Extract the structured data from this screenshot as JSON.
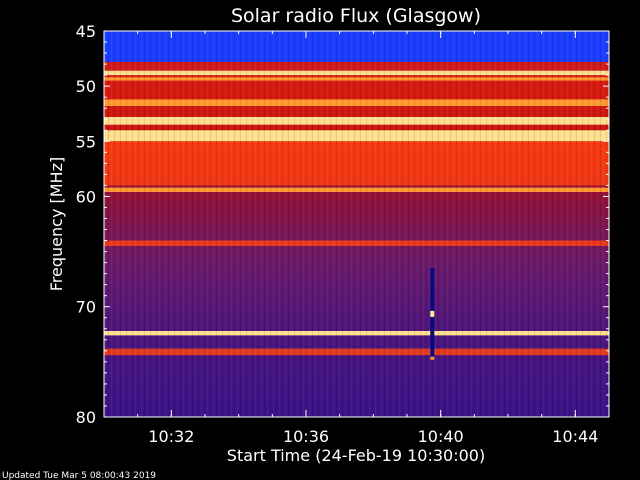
{
  "chart_data": {
    "type": "heatmap",
    "title": "Solar radio Flux (Glasgow)",
    "xlabel": "Start Time (24-Feb-19 10:30:00)",
    "ylabel": "Frequency [MHz]",
    "x_axis": {
      "unit": "time",
      "range": [
        "10:30:00",
        "10:45:00"
      ],
      "ticks": [
        "10:32",
        "10:36",
        "10:40",
        "10:44"
      ]
    },
    "y_axis": {
      "unit": "MHz",
      "range": [
        45,
        80
      ],
      "inverted": true,
      "ticks": [
        45,
        50,
        55,
        60,
        70,
        80
      ]
    },
    "colors": {
      "background": "#000000",
      "axis": "#ffffff",
      "colormap": [
        "#3a0a7a",
        "#6a1aa8",
        "#b0186a",
        "#d81a1a",
        "#ff4010",
        "#ff9a30",
        "#ffe090"
      ],
      "blue_band": "#1a3cff"
    },
    "bands": [
      {
        "frequency_mhz": [
          45.0,
          47.8
        ],
        "level": "background-blue"
      },
      {
        "frequency_mhz": [
          48.6,
          49.0
        ],
        "level": "very-high"
      },
      {
        "frequency_mhz": [
          49.2,
          49.5
        ],
        "level": "high"
      },
      {
        "frequency_mhz": [
          51.2,
          51.8
        ],
        "level": "high"
      },
      {
        "frequency_mhz": [
          52.8,
          53.5
        ],
        "level": "very-high"
      },
      {
        "frequency_mhz": [
          54.0,
          55.0
        ],
        "level": "very-high"
      },
      {
        "frequency_mhz": [
          55.0,
          59.0
        ],
        "level": "medium-high"
      },
      {
        "frequency_mhz": [
          59.2,
          59.6
        ],
        "level": "high"
      },
      {
        "frequency_mhz": [
          64.0,
          64.5
        ],
        "level": "medium-high"
      },
      {
        "frequency_mhz": [
          72.2,
          72.6
        ],
        "level": "very-high"
      },
      {
        "frequency_mhz": [
          73.8,
          74.4
        ],
        "level": "medium-high"
      }
    ],
    "burst": {
      "time": "10:39:45",
      "frequency_mhz": [
        66.5,
        74.8
      ]
    }
  },
  "footer": {
    "updated": "Updated Tue Mar  5 08:00:43 2019"
  }
}
